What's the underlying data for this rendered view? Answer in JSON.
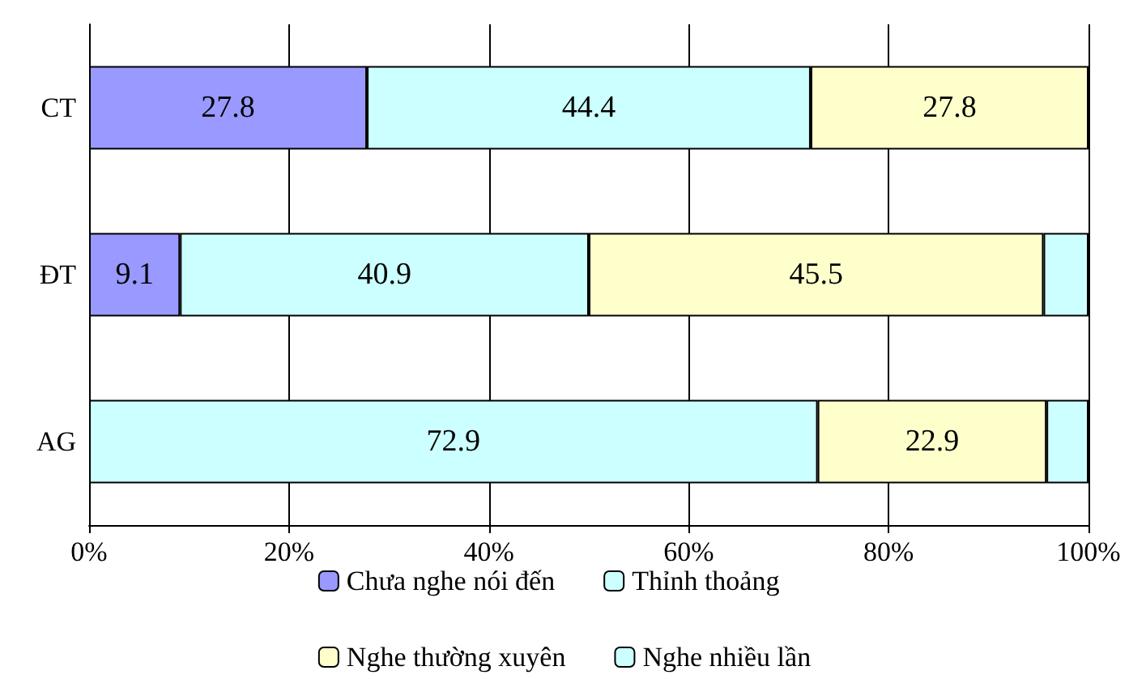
{
  "chart_data": {
    "type": "bar",
    "orientation": "horizontal",
    "stacked": true,
    "categories": [
      "CT",
      "ĐT",
      "AG"
    ],
    "series": [
      {
        "name": "Chưa nghe nói đến",
        "color": "#9999ff",
        "values": [
          27.8,
          9.1,
          null
        ],
        "value_labels": [
          "27.8",
          "9.1",
          null
        ]
      },
      {
        "name": "Thỉnh thoảng",
        "color": "#ccffff",
        "values": [
          44.4,
          40.9,
          72.9
        ],
        "value_labels": [
          "44.4",
          "40.9",
          "72.9"
        ]
      },
      {
        "name": "Nghe thường xuyên",
        "color": "#ffffcc",
        "values": [
          27.8,
          45.5,
          22.9
        ],
        "value_labels": [
          "27.8",
          "45.5",
          "22.9"
        ]
      },
      {
        "name": "Nghe nhiều lần",
        "color": "#ccffff",
        "values": [
          null,
          4.5,
          4.2
        ],
        "value_labels": [
          null,
          null,
          null
        ]
      }
    ],
    "xlim": [
      0,
      100
    ],
    "xticks": [
      {
        "value": 0,
        "label": "0%"
      },
      {
        "value": 20,
        "label": "20%"
      },
      {
        "value": 40,
        "label": "40%"
      },
      {
        "value": 60,
        "label": "60%"
      },
      {
        "value": 80,
        "label": "80%"
      },
      {
        "value": 100,
        "label": "100%"
      }
    ],
    "grid": "x",
    "legend": "bottom"
  }
}
